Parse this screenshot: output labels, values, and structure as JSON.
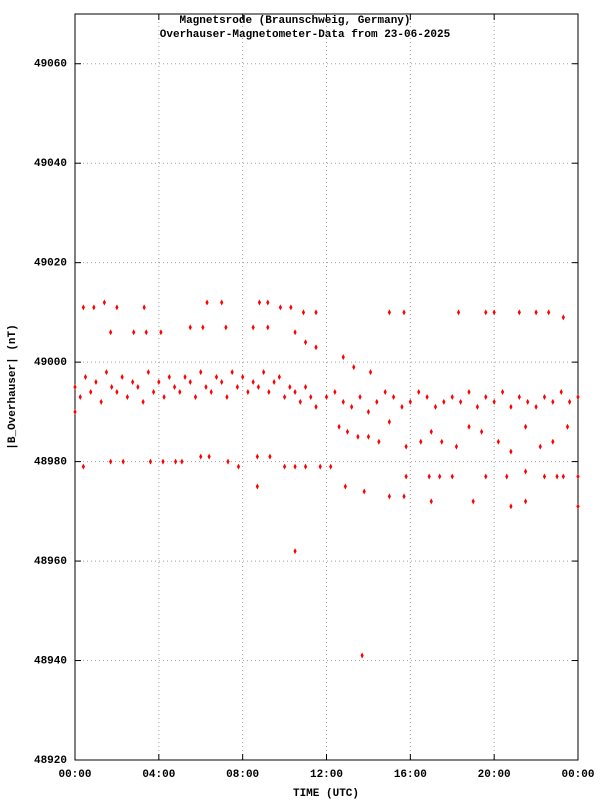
{
  "chart_data": {
    "type": "scatter",
    "title": "Magnetsrode (Braunschweig, Germany)",
    "subtitle": "Overhauser-Magnetometer-Data from 23-06-2025",
    "x_label": "TIME (UTC)",
    "y_label": "|B_Overhauser| (nT)",
    "color": "#ff0000",
    "grid": true,
    "xlim": [
      0,
      24
    ],
    "xticks": [
      {
        "value": 0,
        "label": "00:00"
      },
      {
        "value": 4,
        "label": "04:00"
      },
      {
        "value": 8,
        "label": "08:00"
      },
      {
        "value": 12,
        "label": "12:00"
      },
      {
        "value": 16,
        "label": "16:00"
      },
      {
        "value": 20,
        "label": "20:00"
      },
      {
        "value": 24,
        "label": "00:00"
      }
    ],
    "ylim": [
      48920,
      49070
    ],
    "yticks": [
      48920,
      48940,
      48960,
      48980,
      49000,
      49020,
      49040,
      49060
    ],
    "x": [
      0.0,
      0.25,
      0.5,
      0.75,
      1.0,
      1.25,
      1.5,
      1.75,
      2.0,
      2.25,
      2.5,
      2.75,
      3.0,
      3.25,
      3.5,
      3.75,
      4.0,
      4.25,
      4.5,
      4.75,
      5.0,
      5.25,
      5.5,
      5.75,
      6.0,
      6.25,
      6.5,
      6.75,
      7.0,
      7.25,
      7.5,
      7.75,
      8.0,
      8.25,
      8.5,
      8.75,
      9.0,
      9.25,
      9.5,
      9.75,
      10.0,
      10.25,
      10.5,
      10.75,
      11.0,
      11.25,
      11.5,
      12.0,
      12.4,
      12.8,
      13.2,
      13.6,
      14.0,
      14.4,
      14.8,
      15.2,
      15.6,
      16.0,
      16.4,
      16.8,
      17.2,
      17.6,
      18.0,
      18.4,
      18.8,
      19.2,
      19.6,
      20.0,
      20.4,
      20.8,
      21.2,
      21.6,
      22.0,
      22.4,
      22.8,
      23.2,
      23.6,
      24.0,
      12.6,
      13.0,
      13.5,
      14.0,
      14.5,
      15.0,
      15.8,
      16.5,
      17.0,
      17.5,
      18.2,
      18.8,
      19.4,
      20.2,
      20.8,
      21.5,
      22.2,
      22.8,
      23.5,
      15.8,
      16.9,
      17.4,
      18.0,
      19.6,
      20.6,
      21.5,
      22.4,
      23.0,
      23.3,
      24.0,
      12.9,
      13.8,
      15.0,
      15.7,
      17.0,
      19.0,
      20.8,
      21.5,
      24.0,
      0.4,
      0.9,
      1.4,
      2.0,
      3.3,
      6.3,
      7.0,
      8.8,
      9.2,
      9.8,
      10.3,
      10.9,
      11.5,
      15.0,
      15.7,
      18.3,
      19.6,
      20.0,
      21.2,
      22.0,
      22.6,
      23.3,
      1.7,
      2.8,
      3.4,
      4.1,
      5.5,
      6.1,
      7.2,
      8.5,
      9.2,
      10.5,
      11.0,
      11.5,
      0.4,
      1.7,
      2.3,
      3.6,
      4.2,
      4.8,
      5.1,
      6.0,
      6.4,
      7.3,
      7.8,
      8.7,
      9.3,
      10.0,
      10.5,
      11.0,
      11.7,
      12.2,
      12.8,
      13.3,
      14.1,
      0.0,
      10.5,
      13.7,
      8.7
    ],
    "values": [
      48995,
      48993,
      48997,
      48994,
      48996,
      48992,
      48998,
      48995,
      48994,
      48997,
      48993,
      48996,
      48995,
      48992,
      48998,
      48994,
      48996,
      48993,
      48997,
      48995,
      48994,
      48997,
      48996,
      48993,
      48998,
      48995,
      48994,
      48997,
      48996,
      48993,
      48998,
      48995,
      48997,
      48994,
      48996,
      48995,
      48998,
      48994,
      48996,
      48997,
      48993,
      48995,
      48994,
      48992,
      48995,
      48993,
      48991,
      48993,
      48994,
      48992,
      48991,
      48993,
      48990,
      48992,
      48994,
      48993,
      48991,
      48992,
      48994,
      48993,
      48991,
      48992,
      48993,
      48992,
      48994,
      48991,
      48993,
      48992,
      48994,
      48991,
      48993,
      48992,
      48991,
      48993,
      48992,
      48994,
      48992,
      48993,
      48987,
      48986,
      48985,
      48985,
      48984,
      48988,
      48983,
      48984,
      48986,
      48984,
      48983,
      48987,
      48986,
      48984,
      48982,
      48987,
      48983,
      48984,
      48987,
      48977,
      48977,
      48977,
      48977,
      48977,
      48977,
      48978,
      48977,
      48977,
      48977,
      48977,
      48975,
      48974,
      48973,
      48973,
      48972,
      48972,
      48971,
      48972,
      48971,
      49011,
      49011,
      49012,
      49011,
      49011,
      49012,
      49012,
      49012,
      49012,
      49011,
      49011,
      49010,
      49010,
      49010,
      49010,
      49010,
      49010,
      49010,
      49010,
      49010,
      49010,
      49009,
      49006,
      49006,
      49006,
      49006,
      49007,
      49007,
      49007,
      49007,
      49007,
      49006,
      49004,
      49003,
      48979,
      48980,
      48980,
      48980,
      48980,
      48980,
      48980,
      48981,
      48981,
      48980,
      48979,
      48981,
      48981,
      48979,
      48979,
      48979,
      48979,
      48979,
      49001,
      48999,
      48998,
      48990,
      48962,
      48941,
      48975
    ]
  }
}
